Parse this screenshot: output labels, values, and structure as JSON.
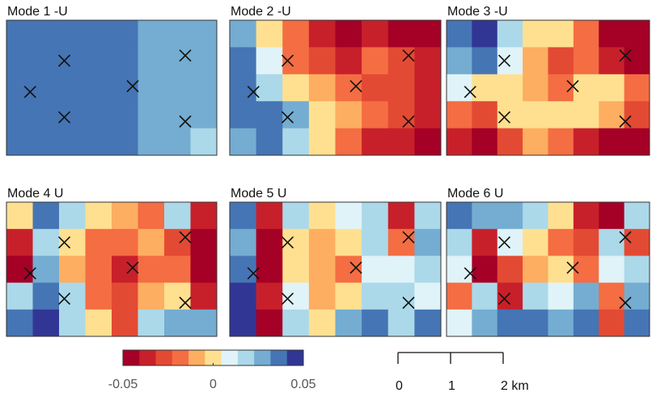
{
  "chart_data": {
    "type": "heatmap",
    "xlim": [
      0,
      4
    ],
    "ylim": [
      0,
      2.6
    ],
    "clim": [
      -0.05,
      0.05
    ],
    "colormap": [
      "#a50026",
      "#c8202a",
      "#e34a33",
      "#f46d43",
      "#fdae61",
      "#fee090",
      "#e0f3f8",
      "#abd9e9",
      "#74add1",
      "#4575b4",
      "#313695"
    ],
    "colorbar_ticks": [
      -0.05,
      0,
      0.05
    ],
    "markers": {
      "x": [
        1.1,
        3.4,
        2.4,
        0.45,
        1.1,
        3.4
      ],
      "y": [
        1.82,
        1.92,
        1.33,
        1.22,
        0.73,
        0.65
      ]
    },
    "scalebar_ticks": [
      0,
      1,
      {
        "value": 2,
        "label": "2 km"
      }
    ],
    "panels": [
      {
        "title": "Mode 1 -U",
        "grid": [
          [
            0.04,
            0.04,
            0.04,
            0.04,
            0.035,
            0.025,
            0.025,
            0.025
          ],
          [
            0.04,
            0.04,
            0.04,
            0.04,
            0.035,
            0.025,
            0.025,
            0.025
          ],
          [
            0.04,
            0.04,
            0.04,
            0.04,
            0.04,
            0.03,
            0.025,
            0.025
          ],
          [
            0.04,
            0.04,
            0.04,
            0.04,
            0.035,
            0.025,
            0.025,
            0.025
          ],
          [
            0.04,
            0.04,
            0.04,
            0.04,
            0.035,
            0.025,
            0.025,
            0.02
          ]
        ]
      },
      {
        "title": "Mode 2 -U",
        "grid": [
          [
            0.03,
            0,
            -0.02,
            -0.04,
            -0.05,
            -0.04,
            -0.05,
            -0.05
          ],
          [
            0.04,
            0.01,
            -0.02,
            -0.03,
            -0.04,
            -0.02,
            -0.03,
            -0.04
          ],
          [
            0.04,
            0.02,
            0,
            -0.01,
            -0.02,
            -0.03,
            -0.03,
            -0.04
          ],
          [
            0.04,
            0.04,
            0.03,
            0,
            -0.01,
            -0.02,
            -0.03,
            -0.04
          ],
          [
            0.03,
            0.04,
            0.02,
            0,
            -0.02,
            -0.04,
            -0.04,
            -0.05
          ]
        ]
      },
      {
        "title": "Mode 3 -U",
        "grid": [
          [
            0.04,
            0.05,
            0.02,
            0,
            0,
            -0.02,
            -0.05,
            -0.05
          ],
          [
            0.03,
            0.04,
            0.01,
            -0.01,
            -0.03,
            -0.02,
            -0.04,
            -0.05
          ],
          [
            0.01,
            0,
            0,
            -0.01,
            -0.02,
            0,
            0,
            -0.02
          ],
          [
            -0.02,
            -0.03,
            0,
            0,
            0,
            0,
            -0.01,
            -0.03
          ],
          [
            -0.04,
            -0.05,
            -0.03,
            -0.01,
            -0.02,
            -0.04,
            -0.05,
            -0.05
          ]
        ]
      },
      {
        "title": "Mode 4 U",
        "grid": [
          [
            0,
            0.04,
            0.02,
            0,
            -0.01,
            -0.02,
            0.02,
            -0.04
          ],
          [
            -0.04,
            0.02,
            0,
            -0.02,
            -0.02,
            -0.01,
            -0.03,
            -0.05
          ],
          [
            -0.05,
            0.03,
            -0.01,
            -0.02,
            -0.04,
            -0.02,
            -0.02,
            -0.05
          ],
          [
            0.02,
            0.04,
            0.02,
            -0.02,
            -0.03,
            -0.01,
            0,
            -0.04
          ],
          [
            0.04,
            0.05,
            0.02,
            0,
            -0.03,
            0.02,
            0.03,
            0.03
          ]
        ]
      },
      {
        "title": "Mode 5 U",
        "grid": [
          [
            0.04,
            -0.04,
            0.02,
            0,
            0.01,
            0.02,
            -0.04,
            0.02
          ],
          [
            0.03,
            -0.05,
            0,
            -0.01,
            0,
            0.02,
            -0.02,
            0.03
          ],
          [
            0.04,
            -0.05,
            0,
            -0.01,
            -0.02,
            0.01,
            0.01,
            0.02
          ],
          [
            0.05,
            -0.04,
            0.01,
            -0.01,
            0,
            0.02,
            0.02,
            0.01
          ],
          [
            0.05,
            -0.05,
            0.02,
            0,
            0.03,
            0.04,
            0.02,
            0.04
          ]
        ]
      },
      {
        "title": "Mode 6 U",
        "grid": [
          [
            0.04,
            0.03,
            0.03,
            0.02,
            0,
            -0.04,
            -0.05,
            0.02
          ],
          [
            0.02,
            -0.04,
            0.01,
            0,
            -0.02,
            -0.03,
            0.02,
            -0.03
          ],
          [
            0.01,
            -0.05,
            -0.03,
            -0.01,
            0,
            -0.02,
            0.01,
            0.02
          ],
          [
            -0.02,
            0.02,
            -0.04,
            0.02,
            0.01,
            0.03,
            -0.02,
            0.03
          ],
          [
            0.01,
            0.03,
            0.04,
            0.04,
            0.03,
            0.04,
            -0.03,
            0.04
          ]
        ]
      }
    ]
  }
}
